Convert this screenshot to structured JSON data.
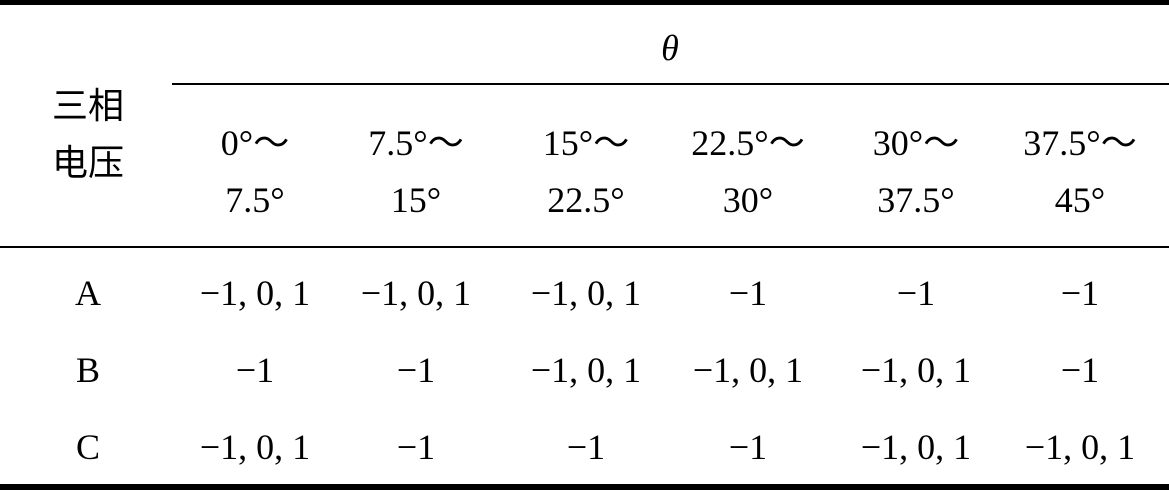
{
  "table": {
    "row_header": [
      "三相",
      "电压"
    ],
    "group_header": "θ",
    "columns": [
      [
        "0°～",
        "7.5°"
      ],
      [
        "7.5°～",
        "15°"
      ],
      [
        "15°～",
        "22.5°"
      ],
      [
        "22.5°～",
        "30°"
      ],
      [
        "30°～",
        "37.5°"
      ],
      [
        "37.5°～",
        "45°"
      ]
    ],
    "rows": [
      [
        "A",
        "−1, 0, 1",
        "−1, 0, 1",
        "−1, 0, 1",
        "−1",
        "−1",
        "−1"
      ],
      [
        "B",
        "−1",
        "−1",
        "−1, 0, 1",
        "−1, 0, 1",
        "−1, 0, 1",
        "−1"
      ],
      [
        "C",
        "−1, 0, 1",
        "−1",
        "−1",
        "−1",
        "−1, 0, 1",
        "−1, 0, 1"
      ]
    ]
  }
}
